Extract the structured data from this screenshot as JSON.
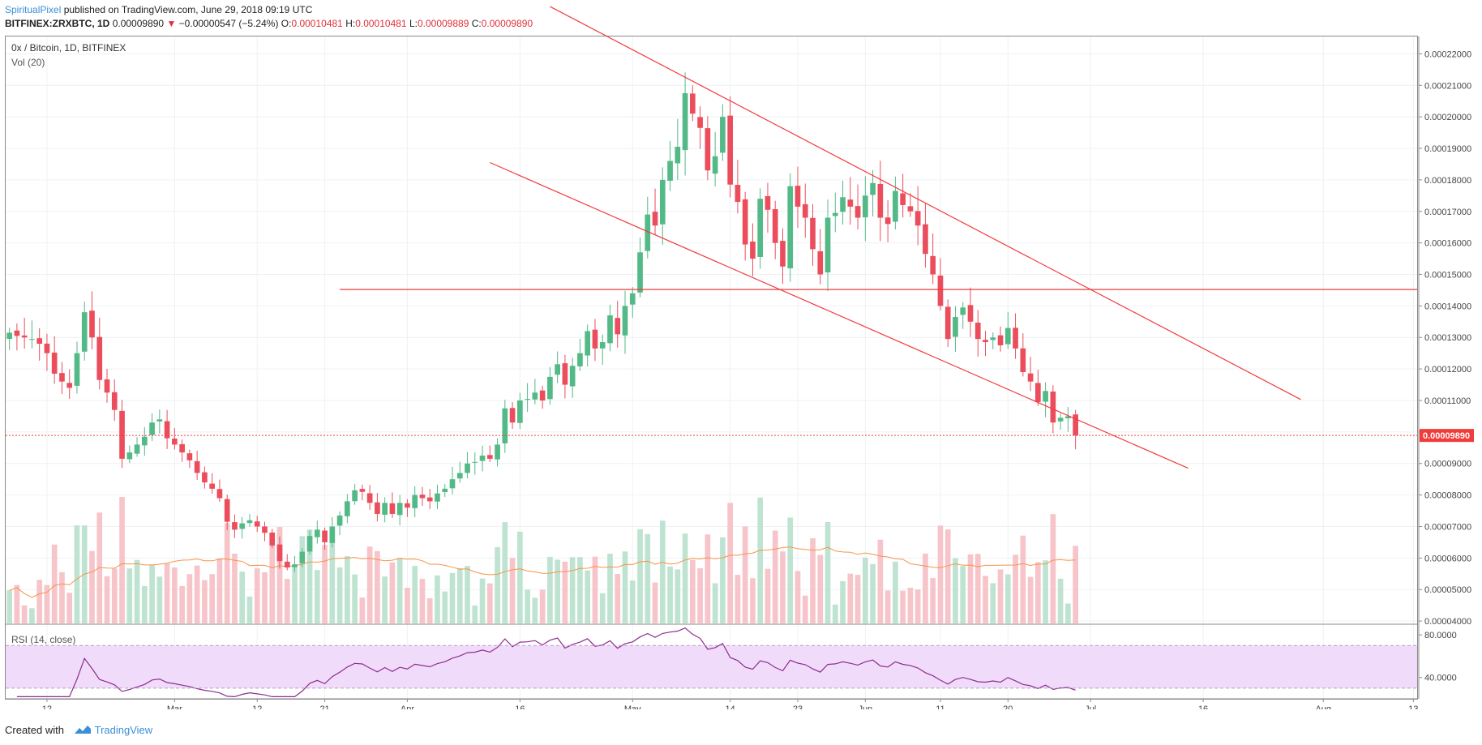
{
  "header": {
    "author": "SpiritualPixel",
    "published_text": " published on TradingView.com, June 29, 2018 09:19 UTC",
    "symbol": "BITFINEX:ZRXBTC, 1D",
    "last": "0.00009890",
    "change_arrow": "▼",
    "change": "−0.00000547 (−5.24%)",
    "o_label": "O:",
    "o_value": "0.00010481",
    "h_label": "H:",
    "h_value": "0.00010481",
    "l_label": "L:",
    "l_value": "0.00009889",
    "c_label": "C:",
    "c_value": "0.00009890"
  },
  "pane": {
    "title": "0x / Bitcoin, 1D, BITFINEX",
    "vol_label": "Vol (20)",
    "rsi_label": "RSI (14, close)"
  },
  "footer": {
    "created": "Created with",
    "brand": "TradingView"
  },
  "colors": {
    "up": "#53b987",
    "down": "#eb4d5c",
    "line": "#f23c3c",
    "vol_ma": "#f7934a",
    "rsi": "#8e2d8e",
    "rsi_band": "#f0dcfa"
  },
  "chart_data": {
    "type": "candlestick",
    "title": "0x / Bitcoin, 1D, BITFINEX",
    "price_axis": {
      "ticks": [
        "0.00004000",
        "0.00005000",
        "0.00006000",
        "0.00007000",
        "0.00008000",
        "0.00009000",
        "0.00010000",
        "0.00011000",
        "0.00012000",
        "0.00013000",
        "0.00014000",
        "0.00015000",
        "0.00016000",
        "0.00017000",
        "0.00018000",
        "0.00019000",
        "0.00020000",
        "0.00021000",
        "0.00022000"
      ],
      "range": [
        3.9e-05,
        0.0002255
      ],
      "current_price_label": "0.00009890"
    },
    "time_axis": {
      "ticks": [
        {
          "label": "12",
          "day": 5
        },
        {
          "label": "Mar",
          "day": 22
        },
        {
          "label": "12",
          "day": 33
        },
        {
          "label": "21",
          "day": 42
        },
        {
          "label": "Apr",
          "day": 53
        },
        {
          "label": "16",
          "day": 68
        },
        {
          "label": "May",
          "day": 83
        },
        {
          "label": "14",
          "day": 96
        },
        {
          "label": "23",
          "day": 105
        },
        {
          "label": "Jun",
          "day": 114
        },
        {
          "label": "11",
          "day": 124
        },
        {
          "label": "20",
          "day": 133
        },
        {
          "label": "Jul",
          "day": 144
        },
        {
          "label": "16",
          "day": 159
        },
        {
          "label": "Aug",
          "day": 175
        },
        {
          "label": "13",
          "day": 187
        }
      ],
      "range_days": [
        -0.5,
        187.5
      ]
    },
    "ohlc_close_series": [
      0.0001315,
      0.0001305,
      0.00013,
      0.0001295,
      0.000128,
      0.000125,
      0.0001185,
      0.000116,
      0.000114,
      0.000125,
      0.000138,
      0.00013,
      0.0001165,
      0.0001125,
      0.000107,
      9.15e-05,
      9.35e-05,
      9.6e-05,
      9.85e-05,
      0.000103,
      0.000104,
      9.8e-05,
      9.6e-05,
      9.35e-05,
      9.1e-05,
      8.7e-05,
      8.4e-05,
      8.2e-05,
      7.9e-05,
      7.15e-05,
      6.9e-05,
      7.1e-05,
      7.2e-05,
      7e-05,
      6.8e-05,
      6.4e-05,
      5.9e-05,
      5.7e-05,
      5.8e-05,
      6.2e-05,
      6.7e-05,
      6.9e-05,
      6.5e-05,
      7e-05,
      7.35e-05,
      7.8e-05,
      8.15e-05,
      8.1e-05,
      7.75e-05,
      7.4e-05,
      7.75e-05,
      7.4e-05,
      7.75e-05,
      7.6e-05,
      8e-05,
      7.9e-05,
      7.8e-05,
      8.05e-05,
      8.2e-05,
      8.5e-05,
      8.7e-05,
      9e-05,
      9.05e-05,
      9.25e-05,
      9.15e-05,
      9.6e-05,
      0.0001075,
      0.000103,
      0.00011,
      0.0001105,
      0.0001125,
      0.00011,
      0.0001175,
      0.0001215,
      0.000115,
      0.000121,
      0.000125,
      0.000132,
      0.0001265,
      0.0001285,
      0.000137,
      0.000131,
      0.00014,
      0.000144,
      0.000157,
      0.000169,
      0.0001655,
      0.00018,
      0.000186,
      0.0001905,
      0.0002075,
      0.000201,
      0.0001965,
      0.000183,
      0.0001875,
      0.0002,
      0.0001785,
      0.000173,
      0.0001595,
      0.000155,
      0.000174,
      0.0001705,
      0.00016,
      0.0001525,
      0.000178,
      0.0001715,
      0.000168,
      0.000158,
      0.00015,
      0.000168,
      0.0001695,
      0.0001745,
      0.0001715,
      0.000168,
      0.000175,
      0.000179,
      0.000168,
      0.000166,
      0.0001765,
      0.000172,
      0.00017,
      0.0001655,
      0.0001565,
      0.00015,
      0.00014,
      0.0001295,
      0.0001365,
      0.0001395,
      0.000135,
      0.0001295,
      0.0001285,
      0.00013,
      0.0001275,
      0.000133,
      0.0001265,
      0.000119,
      0.000116,
      0.0001095,
      0.000113,
      0.000103,
      0.0001045,
      0.000105,
      9.89e-05
    ],
    "volume_level": "relative bars with Vol(20) moving average",
    "rsi_axis": {
      "ticks": [
        "80.0000",
        "40.0000"
      ],
      "range": [
        20,
        90
      ],
      "band": [
        30,
        70
      ]
    },
    "trendlines": [
      {
        "kind": "horizontal",
        "price": 0.0001452,
        "from_day": 44,
        "to_day": 187.5
      },
      {
        "kind": "channel-upper",
        "from": [
          72,
          0.000235
        ],
        "to": [
          172,
          0.0001103
        ]
      },
      {
        "kind": "channel-lower",
        "from": [
          64,
          0.0001855
        ],
        "to": [
          157,
          8.85e-05
        ]
      }
    ]
  }
}
